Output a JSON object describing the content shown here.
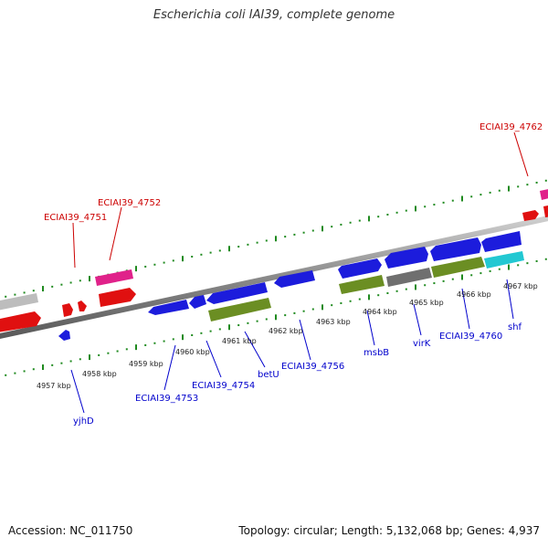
{
  "title": "Escherichia coli IAI39, complete genome",
  "footer": {
    "accession": "Accession: NC_011750",
    "summary": "Topology: circular; Length: 5,132,068 bp; Genes: 4,937"
  },
  "colors": {
    "backbone": "#8a8a8a",
    "tick": "#1f8a1f",
    "label_top": "#cc0000",
    "label_bottom": "#0000cc",
    "gene_blue": "#1c1cdc",
    "gene_red": "#e01010",
    "gene_pink": "#e0228a",
    "gene_olive": "#6b8e23",
    "gene_gray": "#6f6f6f",
    "gene_lightgray": "#bdbdbd",
    "gene_cyan": "#22c8d2"
  },
  "ticks": [
    {
      "label": "4957 kbp"
    },
    {
      "label": "4958 kbp"
    },
    {
      "label": "4959 kbp"
    },
    {
      "label": "4960 kbp"
    },
    {
      "label": "4961 kbp"
    },
    {
      "label": "4962 kbp"
    },
    {
      "label": "4963 kbp"
    },
    {
      "label": "4964 kbp"
    },
    {
      "label": "4965 kbp"
    },
    {
      "label": "4966 kbp"
    },
    {
      "label": "4967 kbp"
    }
  ],
  "top_labels": [
    {
      "text": "ECIAI39_4751"
    },
    {
      "text": "ECIAI39_4752"
    },
    {
      "text": "ECIAI39_4762"
    }
  ],
  "bottom_labels": [
    {
      "text": "yjhD"
    },
    {
      "text": "ECIAI39_4753"
    },
    {
      "text": "ECIAI39_4754"
    },
    {
      "text": "betU"
    },
    {
      "text": "ECIAI39_4756"
    },
    {
      "text": "msbB"
    },
    {
      "text": "virK"
    },
    {
      "text": "ECIAI39_4760"
    },
    {
      "text": "shf"
    }
  ]
}
